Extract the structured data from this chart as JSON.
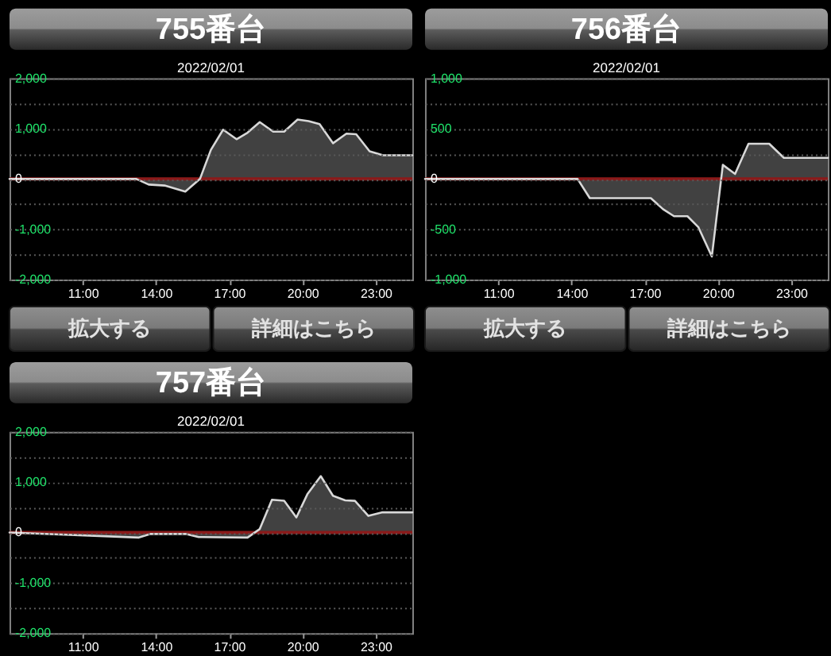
{
  "chart_data": [
    {
      "type": "area",
      "title": "755番台",
      "subtitle": "2022/02/01",
      "color": "#d8d8d8",
      "x": [
        8,
        13.2,
        13.7,
        14.35,
        15.2,
        15.8,
        16.25,
        16.75,
        17.3,
        17.75,
        18.25,
        18.8,
        19.25,
        19.8,
        20.25,
        20.7,
        21.25,
        21.8,
        22.2,
        22.75,
        23.3,
        24.5
      ],
      "values": [
        0,
        0,
        -110,
        -130,
        -250,
        0,
        580,
        980,
        790,
        920,
        1130,
        940,
        940,
        1180,
        1150,
        1090,
        710,
        900,
        890,
        550,
        470,
        470
      ],
      "xlim": [
        8,
        24.5
      ],
      "xticks": [
        {
          "value": 11,
          "label": "11:00"
        },
        {
          "value": 14,
          "label": "14:00"
        },
        {
          "value": 17,
          "label": "17:00"
        },
        {
          "value": 20,
          "label": "20:00"
        },
        {
          "value": 23,
          "label": "23:00"
        }
      ],
      "ylim": [
        -2000,
        2000
      ],
      "yticks": [
        {
          "value": -2000,
          "label": "-2,000"
        },
        {
          "value": -1500,
          "label": null
        },
        {
          "value": -1000,
          "label": "-1,000"
        },
        {
          "value": -500,
          "label": null
        },
        0,
        {
          "value": 500,
          "label": null
        },
        {
          "value": 1000,
          "label": "1,000"
        },
        {
          "value": 1500,
          "label": null
        },
        {
          "value": 2000,
          "label": "2,000"
        }
      ],
      "grid": "y",
      "ref_lines": [
        {
          "axis": "y",
          "value": 0,
          "color": "#8b1a1a"
        }
      ],
      "annotations": [
        "拡大する",
        "詳細はこちら"
      ]
    },
    {
      "type": "area",
      "title": "756番台",
      "subtitle": "2022/02/01",
      "color": "#d8d8d8",
      "x": [
        8,
        14.25,
        14.75,
        17.25,
        17.75,
        18.2,
        18.75,
        19.2,
        19.75,
        20.2,
        20.7,
        21.25,
        22.1,
        22.7,
        24.5
      ],
      "values": [
        0,
        0,
        -190,
        -190,
        -300,
        -370,
        -370,
        -480,
        -770,
        140,
        50,
        350,
        350,
        210,
        210
      ],
      "xlim": [
        8,
        24.5
      ],
      "xticks": [
        {
          "value": 11,
          "label": "11:00"
        },
        {
          "value": 14,
          "label": "14:00"
        },
        {
          "value": 17,
          "label": "17:00"
        },
        {
          "value": 20,
          "label": "20:00"
        },
        {
          "value": 23,
          "label": "23:00"
        }
      ],
      "ylim": [
        -1000,
        1000
      ],
      "yticks": [
        {
          "value": -1000,
          "label": "-1,000"
        },
        {
          "value": -750,
          "label": null
        },
        -500,
        {
          "value": -250,
          "label": null
        },
        0,
        {
          "value": 250,
          "label": null
        },
        500,
        {
          "value": 750,
          "label": null
        },
        {
          "value": 1000,
          "label": "1,000"
        }
      ],
      "grid": "y",
      "ref_lines": [
        {
          "axis": "y",
          "value": 0,
          "color": "#8b1a1a"
        }
      ],
      "annotations": [
        "拡大する",
        "詳細はこちら"
      ]
    },
    {
      "type": "area",
      "title": "757番台",
      "subtitle": "2022/02/01",
      "color": "#d8d8d8",
      "x": [
        8,
        13.3,
        13.75,
        15.25,
        15.75,
        17.75,
        18.25,
        18.75,
        19.25,
        19.75,
        20.2,
        20.75,
        21.25,
        21.75,
        22.15,
        22.7,
        23.25,
        24.5
      ],
      "values": [
        0,
        -100,
        -30,
        -30,
        -90,
        -100,
        70,
        650,
        630,
        300,
        760,
        1120,
        730,
        640,
        630,
        330,
        400,
        400
      ],
      "xlim": [
        8,
        24.5
      ],
      "xticks": [
        {
          "value": 11,
          "label": "11:00"
        },
        {
          "value": 14,
          "label": "14:00"
        },
        {
          "value": 17,
          "label": "17:00"
        },
        {
          "value": 20,
          "label": "20:00"
        },
        {
          "value": 23,
          "label": "23:00"
        }
      ],
      "ylim": [
        -2000,
        2000
      ],
      "yticks": [
        {
          "value": -2000,
          "label": "-2,000"
        },
        {
          "value": -1500,
          "label": null
        },
        {
          "value": -1000,
          "label": "-1,000"
        },
        {
          "value": -500,
          "label": null
        },
        0,
        {
          "value": 500,
          "label": null
        },
        {
          "value": 1000,
          "label": "1,000"
        },
        {
          "value": 1500,
          "label": null
        },
        {
          "value": 2000,
          "label": "2,000"
        }
      ],
      "grid": "y",
      "ref_lines": [
        {
          "axis": "y",
          "value": 0,
          "color": "#8b1a1a"
        }
      ]
    }
  ]
}
